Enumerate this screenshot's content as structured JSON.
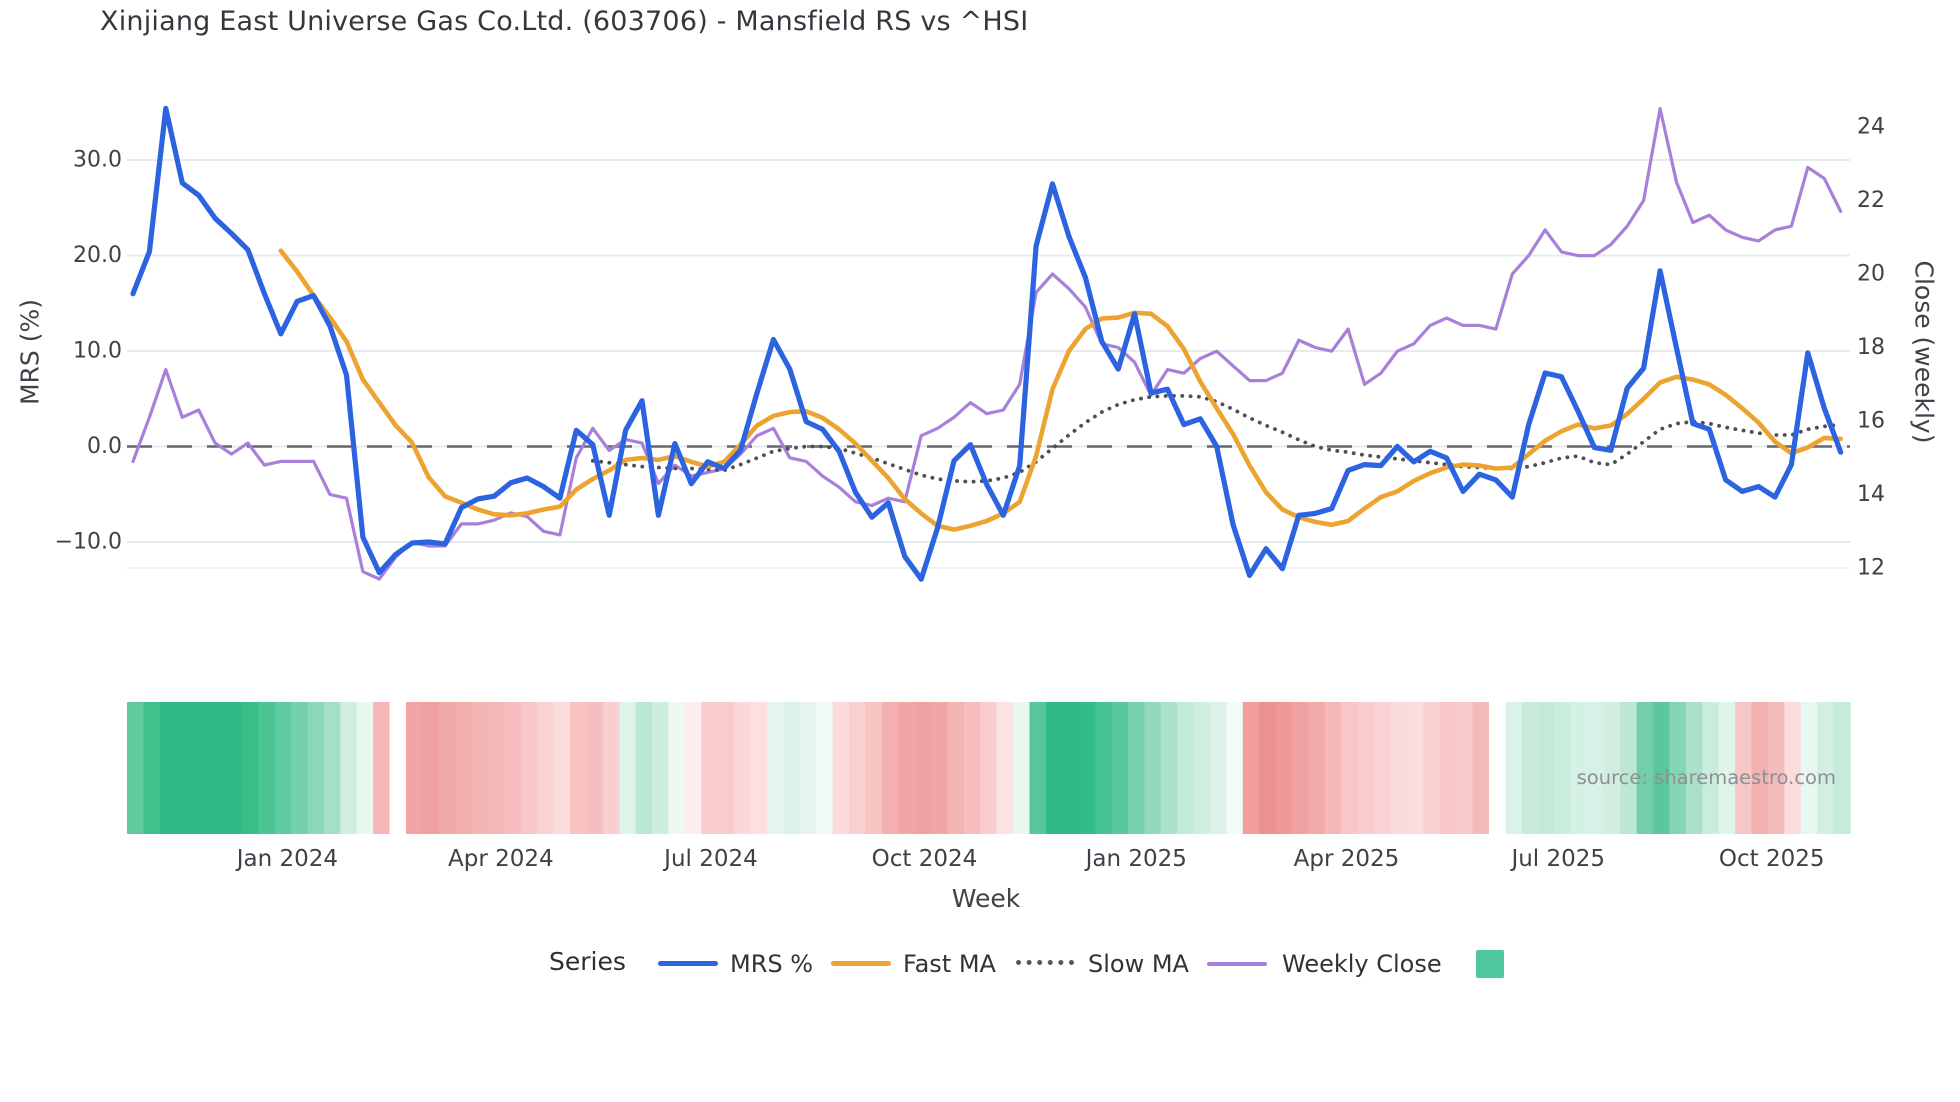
{
  "title": "Xinjiang East Universe Gas Co.Ltd. (603706) - Mansfield RS vs ^HSI",
  "source_note": "source: sharemaestro.com",
  "legend": {
    "title": "Series",
    "items": [
      {
        "label": "MRS %",
        "swatch": "line",
        "color": "#2b63e0"
      },
      {
        "label": "Fast MA",
        "swatch": "line",
        "color": "#eca32f"
      },
      {
        "label": "Slow MA",
        "swatch": "dotted-line",
        "color": "#55585c"
      },
      {
        "label": "Weekly Close",
        "swatch": "thin-line",
        "color": "#a87fd9"
      },
      {
        "label": "",
        "swatch": "square",
        "color": "#4ec89c"
      }
    ]
  },
  "colors": {
    "mrs": "#2b63e0",
    "fast_ma": "#eca32f",
    "slow_ma": "#4d5055",
    "weekly_close": "#a87fd9",
    "zero_line": "#63676d",
    "gridline": "#e8ebee",
    "tick_text": "#3c4248",
    "source_text": "#8d9094",
    "heat_legend_square": "#4ec89c"
  },
  "chart_data": {
    "type": "line",
    "title": "Xinjiang East Universe Gas Co.Ltd. (603706) - Mansfield RS vs ^HSI",
    "xlabel": "Week",
    "x_tick_labels": [
      {
        "label": "Jan 2024",
        "week": 9.4
      },
      {
        "label": "Apr 2024",
        "week": 22.4
      },
      {
        "label": "Jul 2024",
        "week": 35.2
      },
      {
        "label": "Oct 2024",
        "week": 48.2
      },
      {
        "label": "Jan 2025",
        "week": 61.1
      },
      {
        "label": "Apr 2025",
        "week": 73.9
      },
      {
        "label": "Jul 2025",
        "week": 86.8
      },
      {
        "label": "Oct 2025",
        "week": 99.8
      }
    ],
    "y_left": {
      "label": "MRS (%)",
      "ticks": [
        30,
        20,
        10,
        0,
        -10
      ],
      "tick_labels": [
        "30.0",
        "20.0",
        "10.0",
        "0.0",
        "−10.0"
      ],
      "range": [
        -16.5,
        37.5
      ]
    },
    "y_right": {
      "label": "Close (weekly)",
      "ticks": [
        24,
        22,
        20,
        18,
        16,
        14,
        12
      ],
      "tick_labels": [
        "24",
        "22",
        "20",
        "18",
        "16",
        "14",
        "12"
      ],
      "range": [
        11.3,
        24.9
      ]
    },
    "zero_dashed_line": true,
    "grid": "horizontal",
    "legend_position": "bottom",
    "series": [
      {
        "name": "MRS %",
        "axis": "left",
        "start_week": 0,
        "values": [
          16.0,
          20.4,
          35.4,
          27.6,
          26.3,
          23.9,
          22.3,
          20.6,
          16.0,
          11.8,
          15.2,
          15.8,
          12.6,
          7.5,
          -9.5,
          -13.2,
          -11.3,
          -10.1,
          -10.0,
          -10.2,
          -6.4,
          -5.5,
          -5.2,
          -3.8,
          -3.3,
          -4.2,
          -5.4,
          1.7,
          0.2,
          -7.2,
          1.7,
          4.8,
          -7.2,
          0.3,
          -3.9,
          -1.6,
          -2.3,
          -0.4,
          5.6,
          11.2,
          8.1,
          2.6,
          1.8,
          -0.5,
          -4.8,
          -7.4,
          -5.9,
          -11.5,
          -13.9,
          -8.5,
          -1.5,
          0.2,
          -4.0,
          -7.2,
          -2.0,
          21.0,
          27.5,
          22.0,
          17.7,
          11.0,
          8.1,
          13.9,
          5.6,
          6.0,
          2.3,
          2.9,
          0.0,
          -8.2,
          -13.5,
          -10.7,
          -12.8,
          -7.2,
          -7.0,
          -6.5,
          -2.5,
          -1.9,
          -2.0,
          0.0,
          -1.6,
          -0.5,
          -1.2,
          -4.7,
          -2.9,
          -3.5,
          -5.3,
          2.3,
          7.7,
          7.3,
          3.7,
          -0.1,
          -0.4,
          6.1,
          8.2,
          18.4,
          10.3,
          2.4,
          1.8,
          -3.5,
          -4.7,
          -4.2,
          -5.3,
          -1.9,
          9.8,
          4.0,
          -0.6
        ]
      },
      {
        "name": "Fast MA",
        "axis": "left",
        "start_week": 9,
        "values": [
          20.5,
          18.3,
          15.8,
          13.5,
          11.0,
          7.0,
          4.6,
          2.2,
          0.4,
          -3.2,
          -5.2,
          -5.9,
          -6.6,
          -7.1,
          -7.2,
          -7.0,
          -6.6,
          -6.3,
          -4.5,
          -3.4,
          -2.5,
          -1.4,
          -1.2,
          -1.4,
          -1.0,
          -1.6,
          -2.1,
          -1.6,
          0.2,
          2.2,
          3.2,
          3.6,
          3.7,
          3.0,
          1.8,
          0.3,
          -1.5,
          -3.3,
          -5.5,
          -7.0,
          -8.3,
          -8.7,
          -8.3,
          -7.8,
          -7.0,
          -5.8,
          -1.0,
          6.0,
          10.0,
          12.3,
          13.4,
          13.5,
          14.0,
          13.9,
          12.6,
          10.2,
          6.8,
          4.0,
          1.3,
          -2.0,
          -4.8,
          -6.6,
          -7.4,
          -7.9,
          -8.2,
          -7.8,
          -6.5,
          -5.3,
          -4.7,
          -3.6,
          -2.8,
          -2.2,
          -1.9,
          -2.0,
          -2.3,
          -2.2,
          -0.8,
          0.6,
          1.6,
          2.3,
          1.9,
          2.2,
          3.4,
          5.0,
          6.7,
          7.3,
          7.0,
          6.5,
          5.4,
          4.0,
          2.5,
          0.5,
          -0.7,
          -0.1,
          0.9,
          0.8
        ]
      },
      {
        "name": "Slow MA",
        "axis": "left",
        "start_week": 28,
        "values": [
          -1.5,
          -1.7,
          -1.9,
          -2.1,
          -2.2,
          -2.3,
          -2.3,
          -2.4,
          -2.5,
          -1.9,
          -1.2,
          -0.5,
          -0.2,
          0.0,
          0.0,
          -0.2,
          -0.7,
          -1.2,
          -1.8,
          -2.4,
          -3.0,
          -3.4,
          -3.6,
          -3.7,
          -3.6,
          -3.3,
          -2.7,
          -1.6,
          -0.2,
          1.2,
          2.5,
          3.6,
          4.4,
          4.9,
          5.2,
          5.3,
          5.3,
          5.2,
          4.7,
          3.9,
          3.0,
          2.2,
          1.5,
          0.7,
          0.0,
          -0.4,
          -0.6,
          -0.9,
          -1.1,
          -1.3,
          -1.5,
          -1.7,
          -1.9,
          -2.1,
          -2.2,
          -2.3,
          -2.3,
          -2.1,
          -1.7,
          -1.2,
          -1.0,
          -1.7,
          -1.9,
          -0.8,
          0.5,
          1.8,
          2.4,
          2.6,
          2.4,
          2.0,
          1.7,
          1.4,
          1.2,
          1.2,
          1.8,
          2.1,
          2.3
        ]
      },
      {
        "name": "Weekly Close",
        "axis": "right",
        "start_week": 0,
        "values": [
          14.9,
          16.1,
          17.4,
          16.1,
          16.3,
          15.4,
          15.1,
          15.4,
          14.8,
          14.9,
          14.9,
          14.9,
          14.0,
          13.9,
          11.9,
          11.7,
          12.3,
          12.7,
          12.6,
          12.6,
          13.2,
          13.2,
          13.3,
          13.5,
          13.4,
          13.0,
          12.9,
          15.0,
          15.8,
          15.2,
          15.5,
          15.4,
          14.3,
          14.8,
          14.5,
          14.6,
          14.7,
          15.1,
          15.6,
          15.8,
          15.0,
          14.9,
          14.5,
          14.2,
          13.8,
          13.7,
          13.9,
          13.8,
          15.6,
          15.8,
          16.1,
          16.5,
          16.2,
          16.3,
          17.0,
          19.5,
          20.0,
          19.6,
          19.1,
          18.1,
          18.0,
          17.6,
          16.7,
          17.4,
          17.3,
          17.7,
          17.9,
          17.5,
          17.1,
          17.1,
          17.3,
          18.2,
          18.0,
          17.9,
          18.5,
          17.0,
          17.3,
          17.9,
          18.1,
          18.6,
          18.8,
          18.6,
          18.6,
          18.5,
          20.0,
          20.5,
          21.2,
          20.6,
          20.5,
          20.5,
          20.8,
          21.3,
          22.0,
          24.5,
          22.5,
          21.4,
          21.6,
          21.2,
          21.0,
          20.9,
          21.2,
          21.3,
          22.9,
          22.6,
          21.7
        ]
      },
      {
        "name": "heatmap-strip",
        "axis": "none",
        "start_week": 0,
        "values": [
          "#62cb9e",
          "#42c18f",
          "#2dba85",
          "#2dba85",
          "#2dba85",
          "#2dba85",
          "#2dba85",
          "#39be8a",
          "#4cc494",
          "#60caa0",
          "#74d0ab",
          "#8ad8b7",
          "#a5e0c6",
          "#cfeee0",
          "#e8f7f0",
          "#f4b6b6",
          "#ffffff",
          "#f0a4a4",
          "#efa0a0",
          "#f1a8a8",
          "#f2adad",
          "#f4b3b3",
          "#f5b8b8",
          "#f6bebe",
          "#f8c8c8",
          "#fad2d2",
          "#fbdcdc",
          "#f7c2c2",
          "#f6bebe",
          "#f9cece",
          "#dff3ea",
          "#bce8d3",
          "#cdeede",
          "#eef9f4",
          "#fdeded",
          "#f9cccc",
          "#f9cccc",
          "#fbd8d8",
          "#fce0e0",
          "#e4f5ed",
          "#daf2e7",
          "#e6f6ef",
          "#eff9f5",
          "#fbdada",
          "#f9cfcf",
          "#f7c4c4",
          "#f3b0b0",
          "#f1a6a6",
          "#f0a2a2",
          "#f1a6a6",
          "#f4b4b4",
          "#f6bebe",
          "#f9cdcd",
          "#fce4e4",
          "#e9f7f1",
          "#57c79b",
          "#2dba85",
          "#2dba85",
          "#34bc88",
          "#45c291",
          "#57c79b",
          "#75d1ac",
          "#93dabd",
          "#aae2cb",
          "#c2ead7",
          "#cfeee0",
          "#ddf3e9",
          "#f2fbf7",
          "#ef9d9d",
          "#ec9191",
          "#ee9898",
          "#f0a2a2",
          "#f2abab",
          "#f5b8b8",
          "#f8c6c6",
          "#f9cdcd",
          "#fad4d4",
          "#fbdada",
          "#fbdddd",
          "#f9d0d0",
          "#f8c8c8",
          "#f8caca",
          "#f5baba",
          "#ffffff",
          "#dcf2e8",
          "#c8ecdb",
          "#c2ead8",
          "#cbedde",
          "#d5f0e4",
          "#d8f1e6",
          "#cfeee0",
          "#bce8d2",
          "#72cfaa",
          "#5ac89c",
          "#86d5b5",
          "#abe1c9",
          "#c9ecdb",
          "#e0f4ea",
          "#f7c6c6",
          "#f3b1b1",
          "#f5baba",
          "#fadcdc",
          "#e8f7f0",
          "#d2efe2",
          "#c6ebdb"
        ]
      }
    ]
  }
}
